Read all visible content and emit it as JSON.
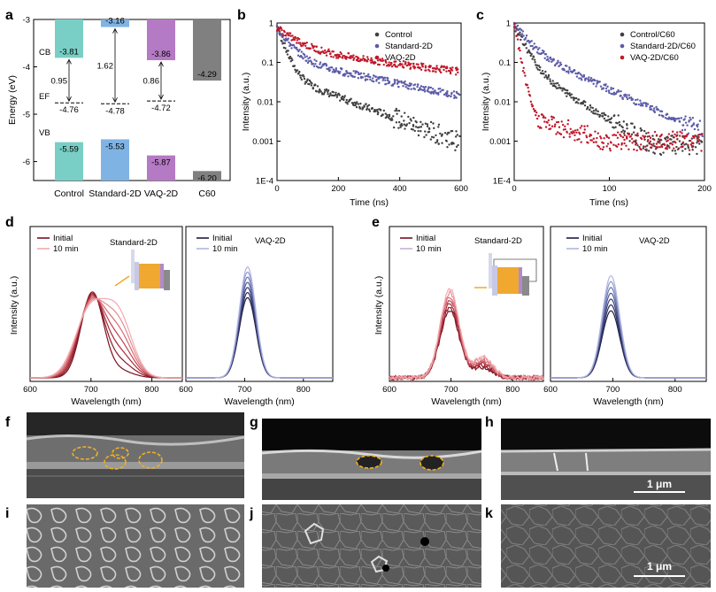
{
  "panel_labels": [
    "a",
    "b",
    "c",
    "d",
    "e",
    "f",
    "g",
    "h",
    "i",
    "j",
    "k"
  ],
  "scale_bar_label": "1 μm",
  "colors": {
    "control": "#404040",
    "standard": "#5b5ba8",
    "vaq": "#c0182a",
    "teal": "#79cfc5",
    "blue": "#7fb3e3",
    "purple": "#b57ac4",
    "gray": "#808080",
    "dark_red": "#7a1020",
    "pink": "#f1a3a8",
    "navy": "#1c1c40",
    "lavender": "#b0b5e0",
    "gold": "#f0a830"
  },
  "chart_data": [
    {
      "id": "a",
      "type": "bar",
      "ylabel": "Energy (eV)",
      "ylim": [
        -6.4,
        -3
      ],
      "yticks": [
        "-3",
        "-4",
        "-5",
        "-6"
      ],
      "categories": [
        "Control",
        "Standard-2D",
        "VAQ-2D",
        "C60"
      ],
      "cb": [
        -3.81,
        -3.16,
        -3.86,
        -4.29
      ],
      "vb": [
        -5.59,
        -5.53,
        -5.87,
        -6.2
      ],
      "ef": [
        -4.76,
        -4.78,
        -4.72,
        null
      ],
      "cb_labels": [
        "-3.81",
        "-3.16",
        "-3.86",
        "-4.29"
      ],
      "vb_labels": [
        "-5.59",
        "-5.53",
        "-5.87",
        "-6.20"
      ],
      "ef_labels": [
        "-4.76",
        "-4.78",
        "-4.72"
      ],
      "gaps": [
        "0.95",
        "1.62",
        "0.86"
      ],
      "band_text": {
        "cb": "CB",
        "vb": "VB",
        "ef": "EF"
      }
    },
    {
      "id": "b",
      "type": "scatter",
      "xlabel": "Time (ns)",
      "ylabel": "Intensity (a.u.)",
      "xlim": [
        0,
        600
      ],
      "ylim_log": [
        0.0001,
        1
      ],
      "xticks": [
        "0",
        "200",
        "400",
        "600"
      ],
      "yticks": [
        "1",
        "0.1",
        "0.01",
        "0.001",
        "1E-4"
      ],
      "series": [
        {
          "name": "Control",
          "tau1": 20,
          "a1": 0.75,
          "tau2": 150,
          "a2": 0.05,
          "floor": 0.001
        },
        {
          "name": "Standard-2D",
          "tau1": 35,
          "a1": 0.65,
          "tau2": 280,
          "a2": 0.12,
          "floor": 0.002
        },
        {
          "name": "VAQ-2D",
          "tau1": 55,
          "a1": 0.55,
          "tau2": 450,
          "a2": 0.22,
          "floor": 0.003
        }
      ]
    },
    {
      "id": "c",
      "type": "scatter",
      "xlabel": "Time (ns)",
      "ylabel": "Intensity (a.u.)",
      "xlim": [
        0,
        200
      ],
      "ylim_log": [
        0.0001,
        1
      ],
      "xticks": [
        "0",
        "100",
        "200"
      ],
      "yticks": [
        "1",
        "0.1",
        "0.01",
        "0.001",
        "1E-4"
      ],
      "series": [
        {
          "name": "Control/C60",
          "tau1": 8,
          "a1": 0.85,
          "tau2": 30,
          "a2": 0.1,
          "floor": 0.0008
        },
        {
          "name": "Standard-2D/C60",
          "tau1": 11,
          "a1": 0.7,
          "tau2": 40,
          "a2": 0.25,
          "floor": 0.0008
        },
        {
          "name": "VAQ-2D/C60",
          "tau1": 3.5,
          "a1": 0.95,
          "tau2": 60,
          "a2": 0.005,
          "floor": 0.001
        }
      ]
    },
    {
      "id": "d1",
      "type": "line",
      "xlabel": "Wavelength (nm)",
      "ylabel": "Intensity (a.u.)",
      "xlim": [
        600,
        850
      ],
      "xticks": [
        "600",
        "700",
        "800"
      ],
      "legend": [
        "Initial",
        "10 min"
      ],
      "title": "Standard-2D"
    },
    {
      "id": "d2",
      "type": "line",
      "xlabel": "Wavelength (nm)",
      "xlim": [
        600,
        850
      ],
      "xticks": [
        "600",
        "700",
        "800"
      ],
      "legend": [
        "Initial",
        "10 min"
      ],
      "title": "VAQ-2D"
    },
    {
      "id": "e1",
      "type": "line",
      "xlabel": "Wavelength (nm)",
      "ylabel": "Intensity (a.u.)",
      "xlim": [
        600,
        850
      ],
      "xticks": [
        "600",
        "700",
        "800"
      ],
      "legend": [
        "Initial",
        "10 min"
      ],
      "title": "Standard-2D"
    },
    {
      "id": "e2",
      "type": "line",
      "xlabel": "Wavelength (nm)",
      "xlim": [
        600,
        850
      ],
      "xticks": [
        "600",
        "700",
        "800"
      ],
      "legend": [
        "Initial",
        "10 min"
      ],
      "title": "VAQ-2D"
    }
  ]
}
